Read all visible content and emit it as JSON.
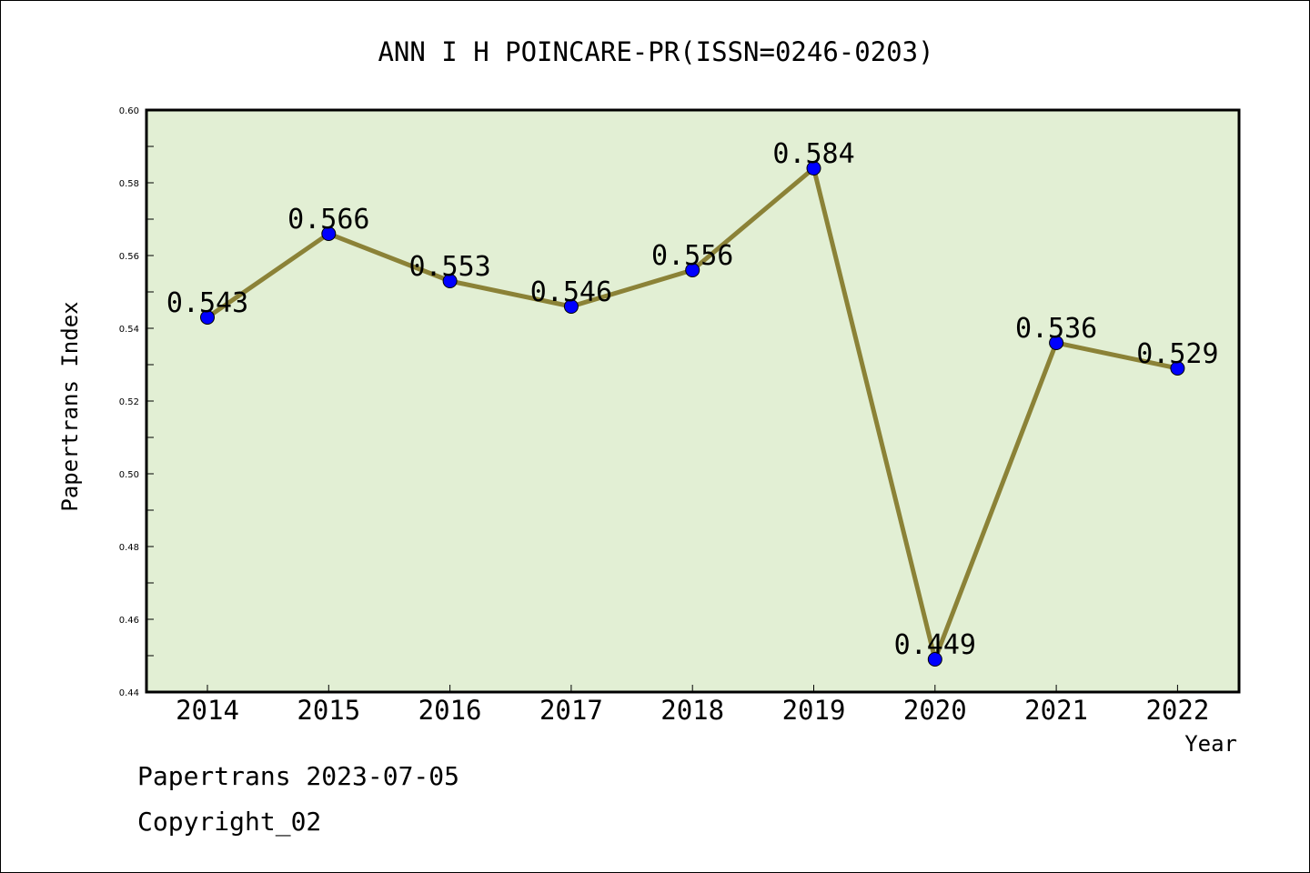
{
  "chart_data": {
    "type": "line",
    "title": "ANN I H POINCARE-PR(ISSN=0246-0203)",
    "xlabel": "Year",
    "ylabel": "Papertrans Index",
    "categories": [
      "2014",
      "2015",
      "2016",
      "2017",
      "2018",
      "2019",
      "2020",
      "2021",
      "2022"
    ],
    "values": [
      0.543,
      0.566,
      0.553,
      0.546,
      0.556,
      0.584,
      0.449,
      0.536,
      0.529
    ],
    "data_labels": [
      "0.543",
      "0.566",
      "0.553",
      "0.546",
      "0.556",
      "0.584",
      "0.449",
      "0.536",
      "0.529"
    ],
    "ylim": [
      0.44,
      0.6
    ],
    "yticks": [
      "0.44",
      "0.46",
      "0.48",
      "0.50",
      "0.52",
      "0.54",
      "0.56",
      "0.58",
      "0.60"
    ],
    "grid": false,
    "colors": {
      "plot_background": "#e2efd4",
      "line": "#8b8237",
      "marker": "#0000ff"
    }
  },
  "footer": {
    "date_line": "Papertrans 2023-07-05",
    "copyright_line": "Copyright_02"
  }
}
